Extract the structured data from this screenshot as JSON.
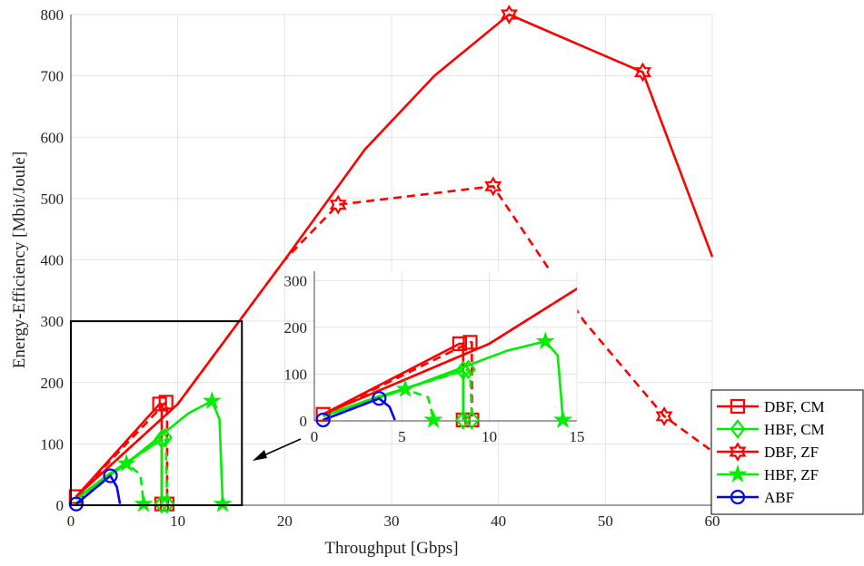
{
  "chart_data": {
    "type": "line",
    "xlabel": "Throughput [Gbps]",
    "ylabel": "Energy-Efficiency [Mbit/Joule]",
    "xlim": [
      0,
      60
    ],
    "ylim": [
      0,
      800
    ],
    "xticks": [
      "0",
      "10",
      "20",
      "30",
      "40",
      "50",
      "60"
    ],
    "yticks": [
      "0",
      "100",
      "200",
      "300",
      "400",
      "500",
      "600",
      "700",
      "800"
    ],
    "grid": true,
    "legend_position": "bottom-right, outside",
    "zoom_box": {
      "x": [
        0,
        16
      ],
      "y": [
        0,
        300
      ]
    },
    "inset": {
      "xlim": [
        0,
        15
      ],
      "ylim": [
        0,
        320
      ],
      "xticks": [
        "0",
        "5",
        "10",
        "15"
      ],
      "yticks": [
        "0",
        "100",
        "200",
        "300"
      ]
    },
    "series": [
      {
        "name": "DBF, CM",
        "color": "#ff0000",
        "marker": "square",
        "lines": [
          {
            "style": "solid",
            "x": [
              0.5,
              8.3,
              8.5,
              8.5
            ],
            "y": [
              14,
              165,
              165,
              2
            ],
            "markers": [
              [
                0.5,
                14
              ],
              [
                8.3,
                165
              ],
              [
                8.5,
                2
              ]
            ]
          },
          {
            "style": "dashed",
            "x": [
              0.5,
              8.9,
              9.0,
              9.0
            ],
            "y": [
              14,
              168,
              168,
              2
            ],
            "markers": [
              [
                8.9,
                168
              ],
              [
                9.0,
                2
              ]
            ]
          }
        ]
      },
      {
        "name": "HBF, CM",
        "color": "#00ee00",
        "marker": "diamond",
        "lines": [
          {
            "style": "solid",
            "x": [
              0.5,
              3.5,
              8.5,
              8.5
            ],
            "y": [
              10,
              50,
              108,
              2
            ],
            "markers": [
              [
                8.5,
                108
              ],
              [
                8.5,
                2
              ]
            ]
          },
          {
            "style": "dashed",
            "x": [
              0.5,
              3.5,
              8.8,
              8.9,
              9.0
            ],
            "y": [
              10,
              50,
              110,
              100,
              2
            ],
            "markers": [
              [
                8.8,
                110
              ],
              [
                9.0,
                2
              ]
            ]
          }
        ]
      },
      {
        "name": "DBF, ZF",
        "color": "#ff0000",
        "marker": "hexagram",
        "lines": [
          {
            "style": "solid",
            "x": [
              0.5,
              10,
              20,
              27.5,
              34,
              41,
              53.5,
              60
            ],
            "y": [
              14,
              165,
              400,
              580,
              700,
              800,
              706,
              405
            ],
            "markers": [
              [
                41,
                800
              ],
              [
                53.5,
                706
              ]
            ]
          },
          {
            "style": "dashed",
            "x": [
              0.5,
              10,
              20,
              25,
              39.5,
              48,
              55.5,
              60
            ],
            "y": [
              14,
              165,
              400,
              490,
              520,
              300,
              145,
              88
            ],
            "markers": [
              [
                25,
                490
              ],
              [
                39.5,
                520
              ],
              [
                55.5,
                145
              ]
            ]
          }
        ]
      },
      {
        "name": "HBF, ZF",
        "color": "#00ee00",
        "marker": "pentagram",
        "lines": [
          {
            "style": "solid",
            "x": [
              0.5,
              5.2,
              11,
              13.2,
              13.9,
              14.1,
              14.2
            ],
            "y": [
              10,
              68,
              150,
              170,
              140,
              50,
              2
            ],
            "markers": [
              [
                5.2,
                68
              ],
              [
                13.2,
                170
              ],
              [
                14.2,
                2
              ]
            ]
          },
          {
            "style": "dashed",
            "x": [
              0.5,
              5.2,
              6.5,
              6.7,
              6.8
            ],
            "y": [
              10,
              68,
              50,
              20,
              2
            ],
            "markers": [
              [
                6.8,
                2
              ]
            ]
          }
        ]
      },
      {
        "name": "ABF",
        "color": "#0000ff",
        "marker": "circle",
        "lines": [
          {
            "style": "solid",
            "x": [
              0.5,
              3.7,
              4.3,
              4.6
            ],
            "y": [
              2,
              48,
              30,
              2
            ],
            "markers": [
              [
                0.5,
                2
              ],
              [
                3.7,
                48
              ]
            ]
          },
          {
            "style": "dashed",
            "x": [
              0.5,
              3.7
            ],
            "y": [
              2,
              48
            ],
            "markers": []
          }
        ]
      }
    ]
  }
}
